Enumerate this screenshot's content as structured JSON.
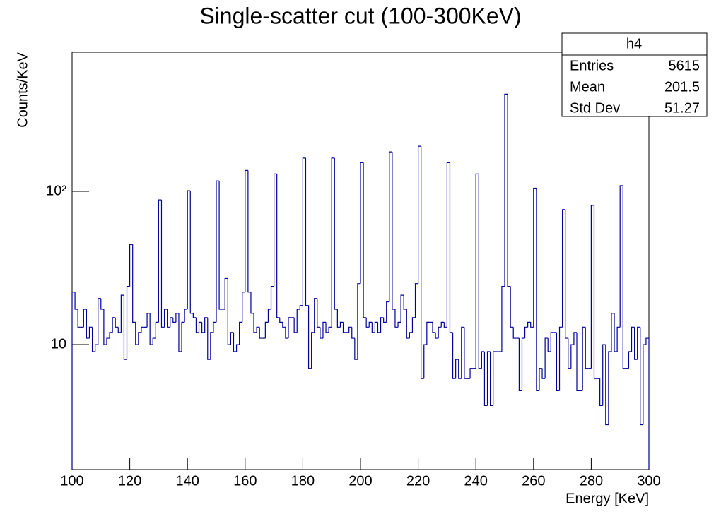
{
  "chart_data": {
    "type": "histogram",
    "title": "Single-scatter cut (100-300KeV)",
    "xlabel": "Energy [KeV]",
    "ylabel": "Counts/KeV",
    "color": "#000099",
    "log_y": true,
    "grid": false,
    "xlim": [
      100,
      300
    ],
    "ylim": [
      1.53,
      809
    ],
    "xticks": [
      100,
      120,
      140,
      160,
      180,
      200,
      220,
      240,
      260,
      280,
      300
    ],
    "yticks": [
      {
        "value": 10,
        "label": "10"
      },
      {
        "value": 100,
        "label": "10²"
      }
    ],
    "bins": [
      100,
      101,
      102,
      103,
      104,
      105,
      106,
      107,
      108,
      109,
      110,
      111,
      112,
      113,
      114,
      115,
      116,
      117,
      118,
      119,
      120,
      121,
      122,
      123,
      124,
      125,
      126,
      127,
      128,
      129,
      130,
      131,
      132,
      133,
      134,
      135,
      136,
      137,
      138,
      139,
      140,
      141,
      142,
      143,
      144,
      145,
      146,
      147,
      148,
      149,
      150,
      151,
      152,
      153,
      154,
      155,
      156,
      157,
      158,
      159,
      160,
      161,
      162,
      163,
      164,
      165,
      166,
      167,
      168,
      169,
      170,
      171,
      172,
      173,
      174,
      175,
      176,
      177,
      178,
      179,
      180,
      181,
      182,
      183,
      184,
      185,
      186,
      187,
      188,
      189,
      190,
      191,
      192,
      193,
      194,
      195,
      196,
      197,
      198,
      199,
      200,
      201,
      202,
      203,
      204,
      205,
      206,
      207,
      208,
      209,
      210,
      211,
      212,
      213,
      214,
      215,
      216,
      217,
      218,
      219,
      220,
      221,
      222,
      223,
      224,
      225,
      226,
      227,
      228,
      229,
      230,
      231,
      232,
      233,
      234,
      235,
      236,
      237,
      238,
      239,
      240,
      241,
      242,
      243,
      244,
      245,
      246,
      247,
      248,
      249,
      250,
      251,
      252,
      253,
      254,
      255,
      256,
      257,
      258,
      259,
      260,
      261,
      262,
      263,
      264,
      265,
      266,
      267,
      268,
      269,
      270,
      271,
      272,
      273,
      274,
      275,
      276,
      277,
      278,
      279,
      280,
      281,
      282,
      283,
      284,
      285,
      286,
      287,
      288,
      289,
      290,
      291,
      292,
      293,
      294,
      295,
      296,
      297,
      298,
      299,
      300
    ],
    "values": [
      22,
      17,
      13,
      13,
      17,
      11,
      13,
      9,
      10,
      20,
      17,
      10,
      11,
      12,
      15,
      13,
      12,
      21,
      8,
      24,
      45,
      14,
      10,
      12,
      13,
      13,
      16,
      10,
      11,
      14,
      88,
      13,
      17,
      13,
      15,
      14,
      16,
      9,
      14,
      17,
      101,
      16,
      15,
      12,
      14,
      12,
      15,
      8,
      12,
      14,
      117,
      17,
      17,
      27,
      10,
      12,
      9,
      10,
      14,
      22,
      137,
      22,
      16,
      12,
      13,
      11,
      11,
      14,
      17,
      24,
      130,
      15,
      14,
      13,
      11,
      15,
      15,
      12,
      17,
      18,
      165,
      18,
      7,
      12,
      20,
      13,
      11,
      14,
      12,
      13,
      165,
      17,
      13,
      14,
      12,
      12,
      13,
      11,
      8,
      25,
      154,
      15,
      13,
      14,
      12,
      14,
      12,
      15,
      14,
      19,
      181,
      17,
      13,
      14,
      21,
      17,
      11,
      12,
      15,
      25,
      197,
      6,
      10,
      14,
      14,
      12,
      11,
      13,
      14,
      13,
      154,
      12,
      6,
      8,
      6,
      13,
      6,
      6,
      7,
      7,
      130,
      7,
      9,
      4,
      9,
      4,
      9,
      9,
      9,
      24,
      431,
      24,
      13,
      11,
      11,
      5,
      11,
      13,
      14,
      13,
      105,
      5,
      7,
      6,
      11,
      9,
      12,
      12,
      5,
      13,
      76,
      11,
      7,
      10,
      12,
      5,
      5,
      13,
      7,
      7,
      81,
      6,
      6,
      4,
      10,
      3,
      9,
      16,
      9,
      13,
      109,
      7,
      7,
      9,
      13,
      8,
      13,
      3,
      10,
      11
    ],
    "stats": {
      "title": "h4",
      "rows": [
        {
          "label": "Entries",
          "value": 5615
        },
        {
          "label": "Mean",
          "value": 201.5
        },
        {
          "label": "Std Dev",
          "value": 51.27
        }
      ]
    }
  }
}
